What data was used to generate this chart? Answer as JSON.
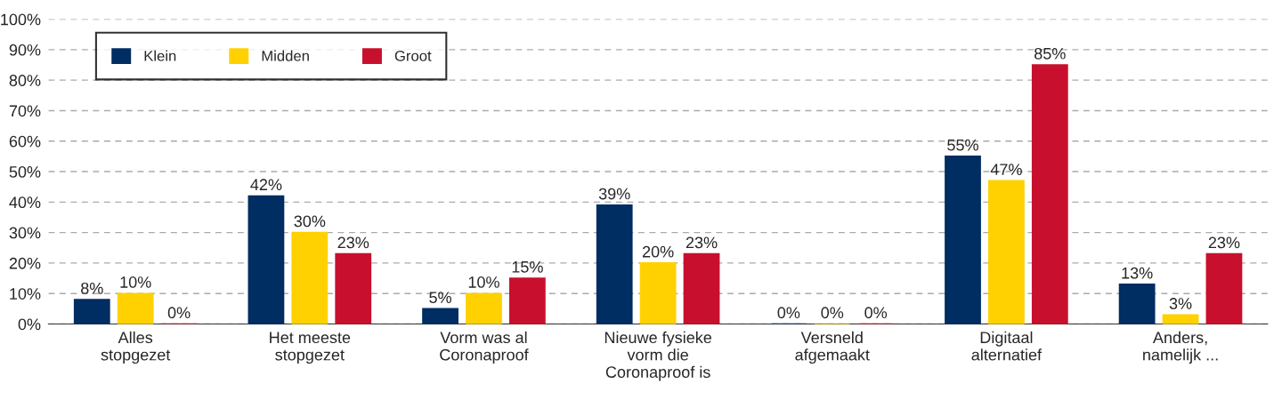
{
  "chart_data": {
    "type": "bar",
    "categories": [
      "Alles\nstopgezet",
      "Het meeste\nstopgezet",
      "Vorm was al\nCoronaproof",
      "Nieuwe fysieke\nvorm die\nCoronaproof is",
      "Versneld\nafgemaakt",
      "Digitaal\nalternatief",
      "Anders,\nnamelijk ..."
    ],
    "series": [
      {
        "name": "Klein",
        "color": "#002d62",
        "values": [
          8,
          42,
          5,
          39,
          0,
          55,
          13
        ],
        "value_labels": [
          "8%",
          "42%",
          "5%",
          "39%",
          "0%",
          "55%",
          "13%"
        ]
      },
      {
        "name": "Midden",
        "color": "#ffd100",
        "values": [
          10,
          30,
          10,
          20,
          0,
          47,
          3
        ],
        "value_labels": [
          "10%",
          "30%",
          "10%",
          "20%",
          "0%",
          "47%",
          "3%"
        ]
      },
      {
        "name": "Groot",
        "color": "#c8102e",
        "values": [
          0,
          23,
          15,
          23,
          0,
          85,
          23
        ],
        "value_labels": [
          "0%",
          "23%",
          "15%",
          "23%",
          "0%",
          "85%",
          "23%"
        ]
      }
    ],
    "ylim": [
      0,
      100
    ],
    "yticks": [
      {
        "value": 0,
        "label": "0%"
      },
      {
        "value": 10,
        "label": "10%"
      },
      {
        "value": 20,
        "label": "20%"
      },
      {
        "value": 30,
        "label": "30%"
      },
      {
        "value": 40,
        "label": "40%"
      },
      {
        "value": 50,
        "label": "50%"
      },
      {
        "value": 60,
        "label": "60%"
      },
      {
        "value": 70,
        "label": "70%"
      },
      {
        "value": 80,
        "label": "80%"
      },
      {
        "value": 90,
        "label": "90%"
      },
      {
        "value": 100,
        "label": "100%"
      }
    ],
    "grid": "y",
    "legend": "top left"
  }
}
